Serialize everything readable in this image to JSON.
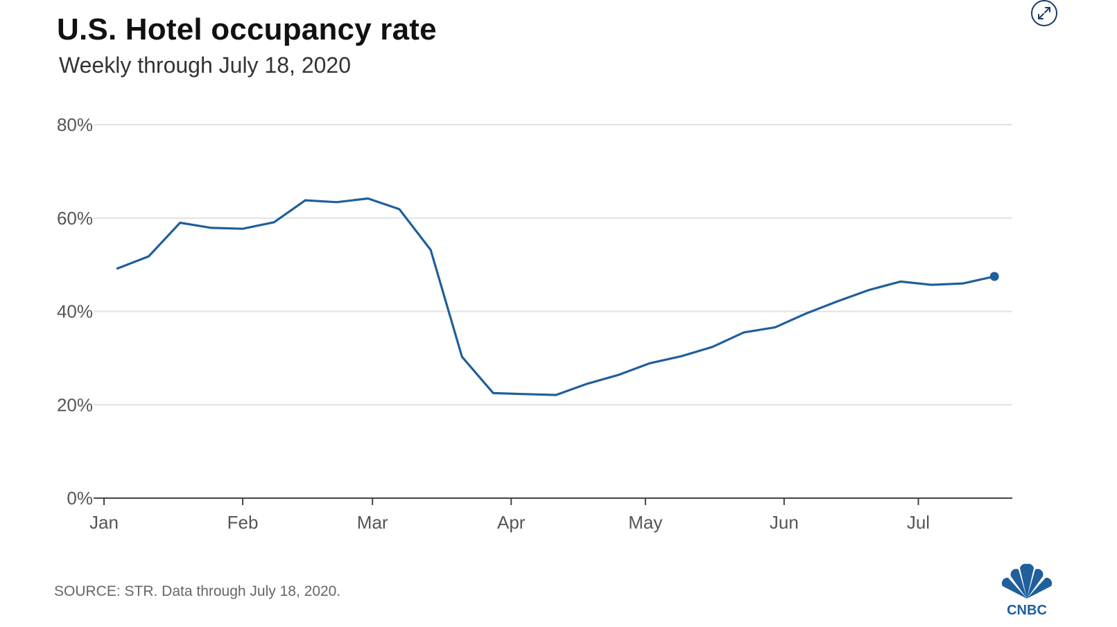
{
  "header": {
    "title": "U.S. Hotel occupancy rate",
    "subtitle": "Weekly through July 18, 2020"
  },
  "footer": {
    "source": "SOURCE: STR. Data through July 18, 2020.",
    "logo_text": "CNBC"
  },
  "icons": {
    "expand": "expand-icon"
  },
  "colors": {
    "line": "#1f5f9c",
    "grid": "#e2e2e2",
    "axis": "#444444"
  },
  "chart_data": {
    "type": "line",
    "title": "U.S. Hotel occupancy rate",
    "subtitle": "Weekly through July 18, 2020",
    "xlabel": "",
    "ylabel": "",
    "x_ticks": [
      "Jan",
      "Feb",
      "Mar",
      "Apr",
      "May",
      "Jun",
      "Jul"
    ],
    "x_tick_dates": [
      "2020-01-01",
      "2020-02-01",
      "2020-03-01",
      "2020-04-01",
      "2020-05-01",
      "2020-06-01",
      "2020-07-01"
    ],
    "x_range": [
      "2020-01-01",
      "2020-07-22"
    ],
    "y_ticks": [
      0,
      20,
      40,
      60,
      80
    ],
    "y_tick_labels": [
      "0%",
      "20%",
      "40%",
      "60%",
      "80%"
    ],
    "ylim": [
      0,
      80
    ],
    "grid": true,
    "legend": "none",
    "end_marker": true,
    "series": [
      {
        "dates": [
          "2020-01-04",
          "2020-01-11",
          "2020-01-18",
          "2020-01-25",
          "2020-02-01",
          "2020-02-08",
          "2020-02-15",
          "2020-02-22",
          "2020-02-29",
          "2020-03-07",
          "2020-03-14",
          "2020-03-21",
          "2020-03-28",
          "2020-04-04",
          "2020-04-11",
          "2020-04-18",
          "2020-04-25",
          "2020-05-02",
          "2020-05-09",
          "2020-05-16",
          "2020-05-23",
          "2020-05-30",
          "2020-06-06",
          "2020-06-13",
          "2020-06-20",
          "2020-06-27",
          "2020-07-04",
          "2020-07-11",
          "2020-07-18"
        ],
        "values": [
          49.2,
          51.8,
          59.0,
          57.9,
          57.7,
          59.1,
          63.8,
          63.4,
          64.2,
          61.9,
          53.2,
          30.3,
          22.5,
          22.3,
          22.1,
          24.5,
          26.4,
          28.9,
          30.4,
          32.4,
          35.5,
          36.6,
          39.6,
          42.2,
          44.6,
          46.4,
          45.7,
          46.0,
          47.5
        ]
      }
    ]
  }
}
